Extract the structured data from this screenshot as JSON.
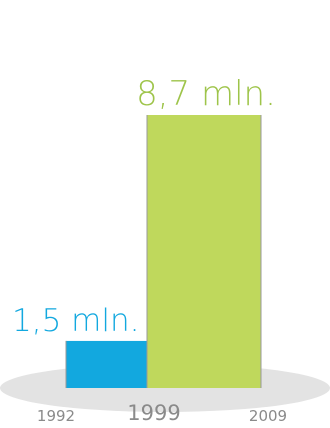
{
  "colors": {
    "bar_first": "#12a8df",
    "bar_second": "#bfd85c",
    "label_first": "#12a8df",
    "label_second": "#9ec44a",
    "tick_text": "#8a8a8a",
    "ground": "#e3e3e3",
    "divider": "#9a9a9a"
  },
  "chart_data": {
    "type": "bar",
    "title": "",
    "xlabel": "",
    "ylabel": "",
    "ylim": [
      0,
      8.7
    ],
    "x_ticks": [
      "1992",
      "1999",
      "2009"
    ],
    "bars": [
      {
        "from": "1992",
        "to": "1999",
        "value": 1.5,
        "label": "1,5 mln."
      },
      {
        "from": "1999",
        "to": "2009",
        "value": 8.7,
        "label": "8,7 mln."
      }
    ],
    "grid": false,
    "legend": "none"
  }
}
